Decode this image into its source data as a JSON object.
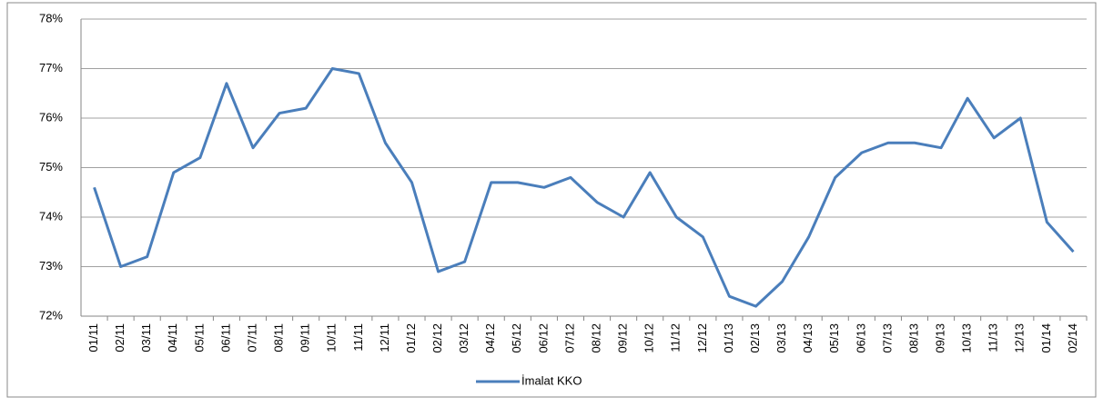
{
  "chart_data": {
    "type": "line",
    "categories": [
      "01/11",
      "02/11",
      "03/11",
      "04/11",
      "05/11",
      "06/11",
      "07/11",
      "08/11",
      "09/11",
      "10/11",
      "11/11",
      "12/11",
      "01/12",
      "02/12",
      "03/12",
      "04/12",
      "05/12",
      "06/12",
      "07/12",
      "08/12",
      "09/12",
      "10/12",
      "11/12",
      "12/12",
      "01/13",
      "02/13",
      "03/13",
      "04/13",
      "05/13",
      "06/13",
      "07/13",
      "08/13",
      "09/13",
      "10/13",
      "11/13",
      "12/13",
      "01/14",
      "02/14"
    ],
    "series": [
      {
        "name": "İmalat KKO",
        "color": "#4a7ebb",
        "values": [
          74.6,
          73.0,
          73.2,
          74.9,
          75.2,
          76.7,
          75.4,
          76.1,
          76.2,
          77.0,
          76.9,
          75.5,
          74.7,
          72.9,
          73.1,
          74.7,
          74.7,
          74.6,
          74.8,
          74.3,
          74.0,
          74.9,
          74.0,
          73.6,
          72.4,
          72.2,
          72.7,
          73.6,
          74.8,
          75.3,
          75.5,
          75.5,
          75.4,
          76.4,
          75.6,
          76.0,
          73.9,
          73.3
        ]
      }
    ],
    "ylim": [
      72,
      78
    ],
    "yticks": [
      {
        "value": 72,
        "label": "72%"
      },
      {
        "value": 73,
        "label": "73%"
      },
      {
        "value": 74,
        "label": "74%"
      },
      {
        "value": 75,
        "label": "75%"
      },
      {
        "value": 76,
        "label": "76%"
      },
      {
        "value": 77,
        "label": "77%"
      },
      {
        "value": 78,
        "label": "78%"
      }
    ],
    "grid": true,
    "legend": "bottom"
  }
}
